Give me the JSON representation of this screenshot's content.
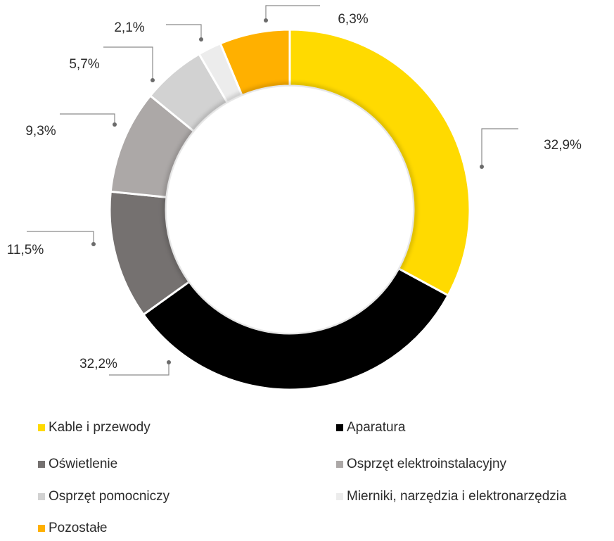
{
  "chart_data": {
    "type": "pie",
    "donut": true,
    "categories": [
      "Kable i przewody",
      "Aparatura",
      "Oświetlenie",
      "Osprzęt elektroinstalacyjny",
      "Osprzęt pomocniczy",
      "Mierniki, narzędzia i elektronarzędzia",
      "Pozostałe"
    ],
    "values": [
      32.9,
      32.2,
      11.5,
      9.3,
      5.7,
      2.1,
      6.3
    ],
    "value_labels": [
      "32,9%",
      "32,2%",
      "11,5%",
      "9,3%",
      "5,7%",
      "2,1%",
      "6,3%"
    ],
    "colors": [
      "#FFDA00",
      "#000000",
      "#757170",
      "#ACA8A7",
      "#D2D2D2",
      "#ECECEC",
      "#FFB000"
    ],
    "legend_position": "bottom"
  }
}
